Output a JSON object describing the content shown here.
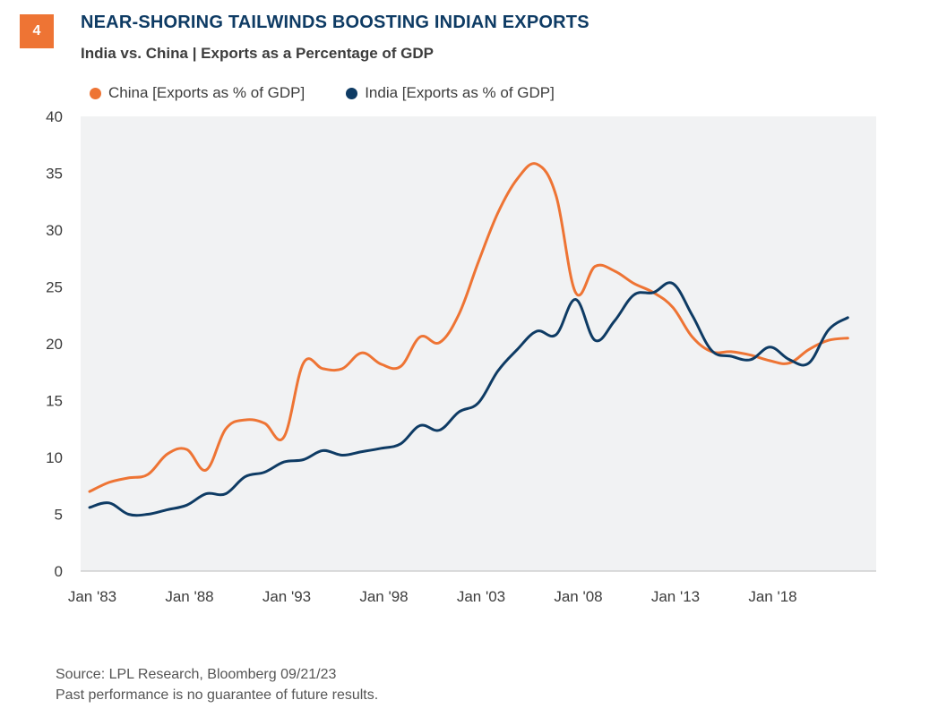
{
  "header": {
    "badge": "4",
    "title": "NEAR-SHORING TAILWINDS BOOSTING INDIAN EXPORTS",
    "subtitle": "India vs. China | Exports as a Percentage of GDP"
  },
  "footer": {
    "source": "Source: LPL Research, Bloomberg  09/21/23",
    "disclaimer": "Past performance is no guarantee of future results."
  },
  "colors": {
    "china": "#EE7434",
    "india": "#0E3B64",
    "plot_bg": "#F1F2F3"
  },
  "chart_data": {
    "type": "line",
    "title": "NEAR-SHORING TAILWINDS BOOSTING INDIAN EXPORTS",
    "subtitle": "India vs. China | Exports as a Percentage of GDP",
    "xlabel": "",
    "ylabel": "",
    "ylim": [
      0,
      40
    ],
    "yticks": [
      0,
      5,
      10,
      15,
      20,
      25,
      30,
      35,
      40
    ],
    "xlim": [
      1983,
      2023
    ],
    "xticks": [
      {
        "x": 1983,
        "label": "Jan '83"
      },
      {
        "x": 1988,
        "label": "Jan '88"
      },
      {
        "x": 1993,
        "label": "Jan '93"
      },
      {
        "x": 1998,
        "label": "Jan '98"
      },
      {
        "x": 2003,
        "label": "Jan '03"
      },
      {
        "x": 2008,
        "label": "Jan '08"
      },
      {
        "x": 2013,
        "label": "Jan '13"
      },
      {
        "x": 2018,
        "label": "Jan '18"
      }
    ],
    "legend_position": "top-left",
    "grid": false,
    "x": [
      1983,
      1984,
      1985,
      1986,
      1987,
      1988,
      1989,
      1990,
      1991,
      1992,
      1993,
      1994,
      1995,
      1996,
      1997,
      1998,
      1999,
      2000,
      2001,
      2002,
      2003,
      2004,
      2005,
      2006,
      2007,
      2008,
      2009,
      2010,
      2011,
      2012,
      2013,
      2014,
      2015,
      2016,
      2017,
      2018,
      2019,
      2020,
      2021,
      2022
    ],
    "series": [
      {
        "name": "China [Exports as % of GDP]",
        "color": "#EE7434",
        "values": [
          7.0,
          7.8,
          8.2,
          8.5,
          10.3,
          10.7,
          8.9,
          12.5,
          13.3,
          13.0,
          11.8,
          18.3,
          17.8,
          17.8,
          19.2,
          18.2,
          18.0,
          20.6,
          20.1,
          22.6,
          27.2,
          31.5,
          34.5,
          35.8,
          33.0,
          24.5,
          26.8,
          26.4,
          25.3,
          24.5,
          23.2,
          20.6,
          19.3,
          19.3,
          19.0,
          18.5,
          18.3,
          19.5,
          20.3,
          20.5
        ]
      },
      {
        "name": "India [Exports as % of GDP]",
        "color": "#0E3B64",
        "values": [
          5.6,
          6.0,
          5.0,
          5.0,
          5.4,
          5.8,
          6.8,
          6.8,
          8.3,
          8.7,
          9.6,
          9.8,
          10.6,
          10.2,
          10.5,
          10.8,
          11.2,
          12.8,
          12.4,
          14.0,
          14.8,
          17.6,
          19.5,
          21.1,
          20.8,
          23.9,
          20.3,
          22.0,
          24.3,
          24.5,
          25.3,
          22.5,
          19.4,
          18.9,
          18.6,
          19.7,
          18.6,
          18.3,
          21.2,
          22.3
        ]
      }
    ]
  }
}
